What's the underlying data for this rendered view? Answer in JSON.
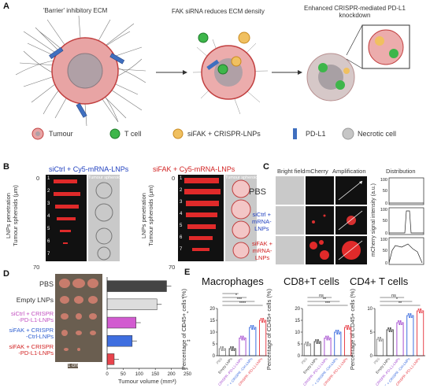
{
  "panels": {
    "A": {
      "letter": "A",
      "stage_titles": [
        "'Barrier' inhibitory ECM",
        "FAK siRNA reduces ECM density",
        "Enhanced CRISPR-mediated PD-L1\nknockdown"
      ],
      "legend": [
        {
          "label": "Tumour",
          "icon": "tumour-cell-icon"
        },
        {
          "label": "T cell",
          "icon": "t-cell-icon"
        },
        {
          "label": "siFAK + CRISPR-LNPs",
          "icon": "lnp-icon"
        },
        {
          "label": "PD-L1",
          "icon": "pd-l1-icon"
        },
        {
          "label": "Necrotic cell",
          "icon": "necrotic-cell-icon"
        }
      ]
    },
    "B": {
      "letter": "B",
      "left_title": "siCtrl + Cy5-mRNA-LNPs",
      "right_title": "siFAK + Cy5-mRNA-LNPs",
      "yaxis_label": "LNPs penetration\nTumour spheroids (μm)",
      "inset_label": "Tumour spheroids",
      "top_tick": "0",
      "bottom_tick": "70",
      "slice_numbers_left": [
        "1",
        "2",
        "3",
        "4",
        "5",
        "6",
        "7"
      ],
      "slice_numbers_right": [
        "1",
        "2",
        "3",
        "4",
        "5",
        "6",
        "7"
      ]
    },
    "C": {
      "letter": "C",
      "col_headers": [
        "Bright field",
        "mCherry",
        "Amplification",
        "Distribution"
      ],
      "row_labels": [
        "PBS",
        "siCtrl +\nmRNA-\nLNPs",
        "siFAK +\nmRNA-\nLNPs"
      ],
      "yaxis_label": "mCherry signal intensity (a.u.)",
      "ytick": [
        "100",
        "50",
        "0"
      ]
    },
    "D": {
      "letter": "D",
      "groups": [
        "PBS",
        "Empty LNPs",
        "siCtrl + CRISPR\n-PD-L1-LNPs",
        "siFAK + CRISPR\n-Ctrl-LNPs",
        "siFAK + CRISPR\n-PD-L1-LNPs"
      ],
      "scale_label": "1 cm",
      "xaxis_label": "Tumour volume (mm³)",
      "xticks": [
        "0",
        "50",
        "100",
        "150",
        "200",
        "250"
      ],
      "significance": [
        "*",
        "*",
        "**",
        "**"
      ]
    },
    "E": {
      "letter": "E",
      "titles": [
        "Macrophages",
        "CD8+T cells",
        "CD4+ T cells"
      ],
      "ylabel": "Percentage of CD45+ cells (%)",
      "xcats": [
        "PBS",
        "Empty LNPs",
        "siCtrl + CRISPR\n-PD-L1-LNPs",
        "siFAK + CRISPR\n-Ctrl-LNPs",
        "siFAK + CRISPR\n-PD-L1-LNPs"
      ]
    }
  },
  "colors": {
    "gray": "#8c8c8c",
    "black": "#444444",
    "purple": "#a64fd0",
    "blue": "#3f6fe0",
    "red": "#e8434c",
    "pink": "#d25bd0"
  },
  "chart_data": [
    {
      "type": "bar",
      "panel": "D",
      "orientation": "horizontal",
      "categories": [
        "PBS",
        "Empty LNPs",
        "siCtrl + CRISPR-PD-L1-LNPs",
        "siFAK + CRISPR-Ctrl-LNPs",
        "siFAK + CRISPR-PD-L1-LNPs"
      ],
      "values": [
        185,
        155,
        90,
        78,
        22
      ],
      "xlabel": "Tumour volume (mm³)",
      "xlim": [
        0,
        250
      ],
      "colors": [
        "#444444",
        "#dddddd",
        "#d25bd0",
        "#3f6fe0",
        "#e8434c"
      ]
    },
    {
      "type": "bar",
      "panel": "E",
      "title": "Macrophages",
      "categories": [
        "PBS",
        "Empty LNPs",
        "siCtrl + CRISPR-PD-L1-LNPs",
        "siFAK + CRISPR-Ctrl-LNPs",
        "siFAK + CRISPR-PD-L1-LNPs"
      ],
      "values": [
        3,
        3,
        7.5,
        12,
        15
      ],
      "ylim": [
        0,
        20
      ],
      "yticks": [
        0,
        5,
        10,
        15,
        20
      ],
      "significance": [
        "****",
        "***",
        "*",
        "*"
      ],
      "colors": [
        "#8c8c8c",
        "#444444",
        "#a64fd0",
        "#3f6fe0",
        "#e8434c"
      ]
    },
    {
      "type": "bar",
      "panel": "E",
      "title": "CD8+T cells",
      "categories": [
        "PBS",
        "Empty LNPs",
        "siCtrl + CRISPR-PD-L1-LNPs",
        "siFAK + CRISPR-Ctrl-LNPs",
        "siFAK + CRISPR-PD-L1-LNPs"
      ],
      "values": [
        5,
        6,
        7.5,
        10,
        12
      ],
      "ylim": [
        0,
        20
      ],
      "yticks": [
        0,
        5,
        10,
        15,
        20
      ],
      "significance": [
        "***",
        "**",
        "ns"
      ],
      "colors": [
        "#8c8c8c",
        "#444444",
        "#a64fd0",
        "#3f6fe0",
        "#e8434c"
      ]
    },
    {
      "type": "bar",
      "panel": "E",
      "title": "CD4+ T cells",
      "categories": [
        "PBS",
        "Empty LNPs",
        "siCtrl + CRISPR-PD-L1-LNPs",
        "siFAK + CRISPR-Ctrl-LNPs",
        "siFAK + CRISPR-PD-L1-LNPs"
      ],
      "values": [
        3.5,
        5.5,
        7,
        8.5,
        9.5
      ],
      "ylim": [
        0,
        10
      ],
      "yticks": [
        0,
        5,
        10
      ],
      "significance": [
        "**",
        "*",
        "ns"
      ],
      "colors": [
        "#8c8c8c",
        "#444444",
        "#a64fd0",
        "#3f6fe0",
        "#e8434c"
      ]
    }
  ]
}
